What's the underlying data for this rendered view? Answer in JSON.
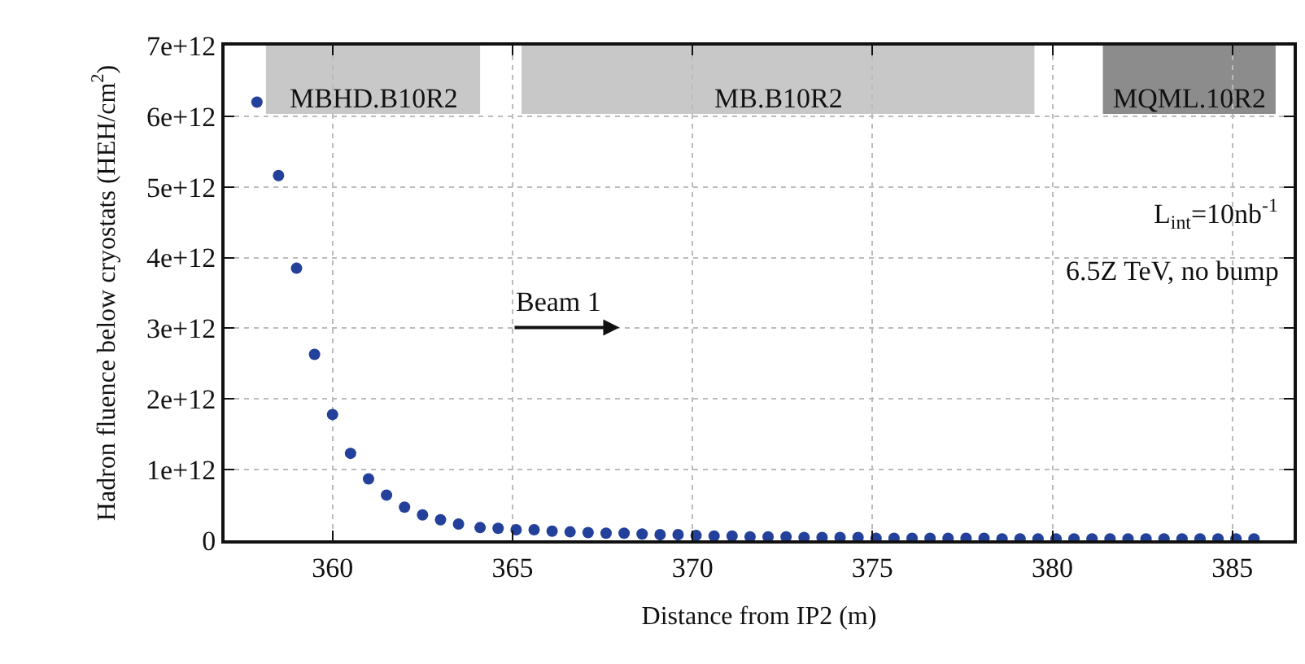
{
  "chart_data": {
    "type": "scatter",
    "xlabel": "Distance from IP2 (m)",
    "ylabel": "Hadron fluence below cryostats (HEH/cm$^{2}$)",
    "x": [
      357.9,
      358.5,
      359.0,
      359.5,
      360.0,
      360.5,
      361.0,
      361.5,
      362.0,
      362.5,
      363.0,
      363.5,
      364.1,
      364.6,
      365.1,
      365.6,
      366.1,
      366.6,
      367.1,
      367.6,
      368.1,
      368.6,
      369.1,
      369.6,
      370.1,
      370.6,
      371.1,
      371.6,
      372.1,
      372.6,
      373.1,
      373.6,
      374.1,
      374.6,
      375.1,
      375.6,
      376.1,
      376.6,
      377.1,
      377.6,
      378.1,
      378.6,
      379.1,
      379.6,
      380.1,
      380.6,
      381.1,
      381.6,
      382.1,
      382.6,
      383.1,
      383.6,
      384.1,
      384.6,
      385.1,
      385.6
    ],
    "series": [
      {
        "color": "#23409a",
        "values": [
          6200000000000.0,
          5160000000000.0,
          3850000000000.0,
          2630000000000.0,
          1780000000000.0,
          1230000000000.0,
          870000000000.0,
          640000000000.0,
          470000000000.0,
          360000000000.0,
          290000000000.0,
          230000000000.0,
          180000000000.0,
          170000000000.0,
          150000000000.0,
          150000000000.0,
          130000000000.0,
          120000000000.0,
          110000000000.0,
          100000000000.0,
          100000000000.0,
          90000000000.0,
          80000000000.0,
          80000000000.0,
          70000000000.0,
          60000000000.0,
          60000000000.0,
          50000000000.0,
          50000000000.0,
          50000000000.0,
          40000000000.0,
          40000000000.0,
          40000000000.0,
          40000000000.0,
          30000000000.0,
          30000000000.0,
          30000000000.0,
          30000000000.0,
          30000000000.0,
          30000000000.0,
          30000000000.0,
          20000000000.0,
          20000000000.0,
          20000000000.0,
          20000000000.0,
          20000000000.0,
          20000000000.0,
          20000000000.0,
          20000000000.0,
          20000000000.0,
          20000000000.0,
          20000000000.0,
          20000000000.0,
          20000000000.0,
          20000000000.0,
          20000000000.0
        ]
      }
    ],
    "xlim": [
      357,
      386.7
    ],
    "xticks": [
      360,
      365,
      370,
      375,
      380,
      385
    ],
    "ylim": [
      0,
      7000000000000.0
    ],
    "yticks": [
      {
        "value": 0,
        "label": "0"
      },
      {
        "value": 1000000000000.0,
        "label": "1e+12"
      },
      {
        "value": 2000000000000.0,
        "label": "2e+12"
      },
      {
        "value": 3000000000000.0,
        "label": "3e+12"
      },
      {
        "value": 4000000000000.0,
        "label": "4e+12"
      },
      {
        "value": 5000000000000.0,
        "label": "5e+12"
      },
      {
        "value": 6000000000000.0,
        "label": "6e+12"
      },
      {
        "value": 7000000000000.0,
        "label": "7e+12"
      }
    ],
    "bands": [
      {
        "axis": "x",
        "from": 358.15,
        "to": 364.1,
        "label": "MBHD.B10R2",
        "color": "#c8c8c8"
      },
      {
        "axis": "x",
        "from": 365.25,
        "to": 379.5,
        "label": "MB.B10R2",
        "color": "#c8c8c8"
      },
      {
        "axis": "x",
        "from": 381.4,
        "to": 386.2,
        "label": "MQML.10R2",
        "color": "#8c8c8c"
      }
    ],
    "annotations": [
      "Beam 1",
      "L$_{int}$=10nb$^{-1}$",
      "6.5Z TeV, no bump"
    ],
    "grid": true,
    "marker": "circle"
  }
}
